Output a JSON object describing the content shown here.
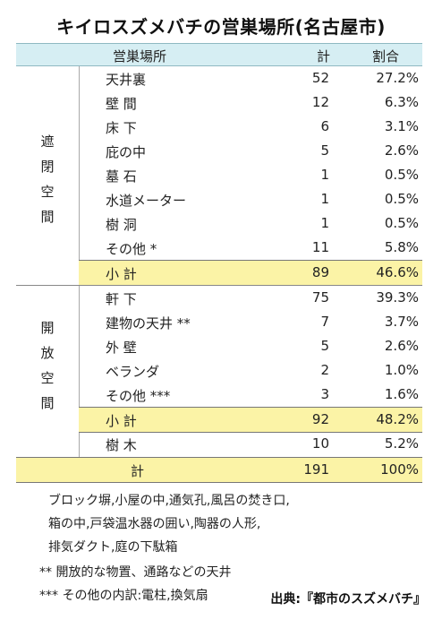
{
  "title": "キイロスズメバチの営巣場所(名古屋市)",
  "header": {
    "place": "営巣場所",
    "count": "計",
    "ratio": "割合"
  },
  "section1": {
    "label": [
      "遮",
      "閉",
      "空",
      "間"
    ],
    "rows": [
      {
        "name": "天井裏",
        "count": "52",
        "pct": "27.2%"
      },
      {
        "name": "壁 間",
        "count": "12",
        "pct": "6.3%"
      },
      {
        "name": "床 下",
        "count": "6",
        "pct": "3.1%"
      },
      {
        "name": "庇の中",
        "count": "5",
        "pct": "2.6%"
      },
      {
        "name": "墓 石",
        "count": "1",
        "pct": "0.5%"
      },
      {
        "name": "水道メーター",
        "count": "1",
        "pct": "0.5%"
      },
      {
        "name": "樹 洞",
        "count": "1",
        "pct": "0.5%"
      },
      {
        "name": "その他 *",
        "count": "11",
        "pct": "5.8%"
      }
    ],
    "subtotal": {
      "name": "小 計",
      "count": "89",
      "pct": "46.6%"
    }
  },
  "section2": {
    "label": [
      "開",
      "放",
      "空",
      "間"
    ],
    "rows": [
      {
        "name": "軒 下",
        "count": "75",
        "pct": "39.3%"
      },
      {
        "name": "建物の天井 **",
        "count": "7",
        "pct": "3.7%"
      },
      {
        "name": "外 壁",
        "count": "5",
        "pct": "2.6%"
      },
      {
        "name": "ベランダ",
        "count": "2",
        "pct": "1.0%"
      },
      {
        "name": "その他 ***",
        "count": "3",
        "pct": "1.6%"
      }
    ],
    "subtotal": {
      "name": "小 計",
      "count": "92",
      "pct": "48.2%"
    },
    "extra": {
      "name": "樹 木",
      "count": "10",
      "pct": "5.2%"
    }
  },
  "total": {
    "name": "計",
    "count": "191",
    "pct": "100%"
  },
  "notes": [
    "ブロック塀,小屋の中,通気孔,風呂の焚き口,",
    "箱の中,戸袋温水器の囲い,陶器の人形,",
    "排気ダクト,庭の下駄箱",
    "** 開放的な物置、通路などの天井",
    "*** その他の内訳:電柱,換気扇"
  ],
  "source": "出典:『都市のスズメバチ』"
}
